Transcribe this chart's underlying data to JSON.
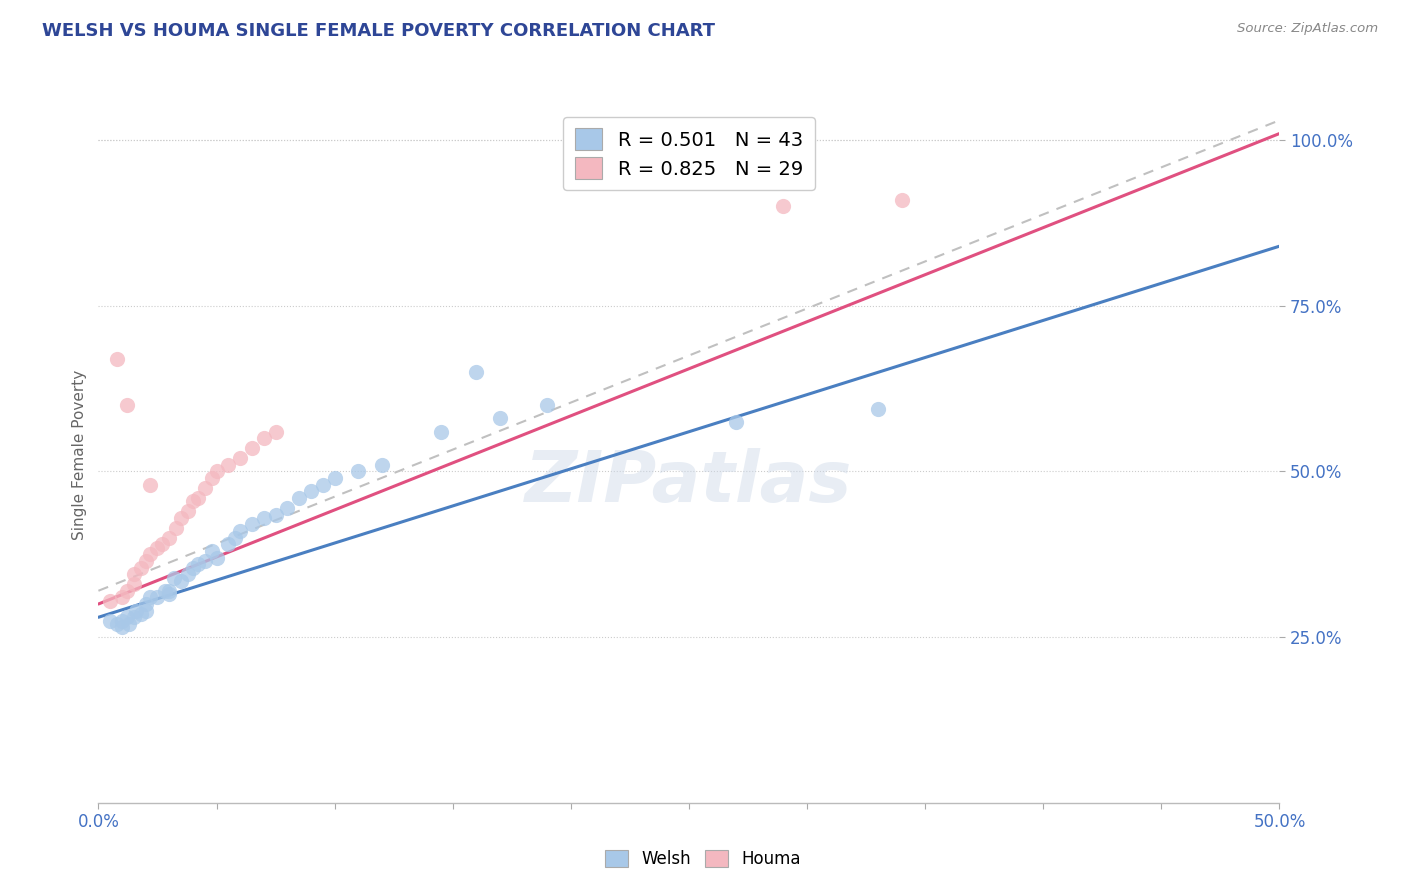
{
  "title": "WELSH VS HOUMA SINGLE FEMALE POVERTY CORRELATION CHART",
  "source": "Source: ZipAtlas.com",
  "ylabel": "Single Female Poverty",
  "welsh_R": 0.501,
  "welsh_N": 43,
  "houma_R": 0.825,
  "houma_N": 29,
  "welsh_color": "#a8c8e8",
  "houma_color": "#f4b8c0",
  "welsh_line_color": "#4a7fc1",
  "houma_line_color": "#e05080",
  "dash_line_color": "#c0c0c0",
  "xlim": [
    0.0,
    0.5
  ],
  "ylim": [
    0.0,
    1.05
  ],
  "ytick_positions": [
    0.25,
    0.5,
    0.75,
    1.0
  ],
  "welsh_points": [
    [
      0.005,
      0.275
    ],
    [
      0.008,
      0.27
    ],
    [
      0.01,
      0.265
    ],
    [
      0.01,
      0.275
    ],
    [
      0.012,
      0.28
    ],
    [
      0.013,
      0.27
    ],
    [
      0.015,
      0.28
    ],
    [
      0.016,
      0.29
    ],
    [
      0.018,
      0.285
    ],
    [
      0.02,
      0.3
    ],
    [
      0.02,
      0.29
    ],
    [
      0.022,
      0.31
    ],
    [
      0.025,
      0.31
    ],
    [
      0.028,
      0.32
    ],
    [
      0.03,
      0.315
    ],
    [
      0.03,
      0.32
    ],
    [
      0.032,
      0.34
    ],
    [
      0.035,
      0.335
    ],
    [
      0.038,
      0.345
    ],
    [
      0.04,
      0.355
    ],
    [
      0.042,
      0.36
    ],
    [
      0.045,
      0.365
    ],
    [
      0.048,
      0.38
    ],
    [
      0.05,
      0.37
    ],
    [
      0.055,
      0.39
    ],
    [
      0.058,
      0.4
    ],
    [
      0.06,
      0.41
    ],
    [
      0.065,
      0.42
    ],
    [
      0.07,
      0.43
    ],
    [
      0.075,
      0.435
    ],
    [
      0.08,
      0.445
    ],
    [
      0.085,
      0.46
    ],
    [
      0.09,
      0.47
    ],
    [
      0.095,
      0.48
    ],
    [
      0.1,
      0.49
    ],
    [
      0.11,
      0.5
    ],
    [
      0.12,
      0.51
    ],
    [
      0.145,
      0.56
    ],
    [
      0.16,
      0.65
    ],
    [
      0.17,
      0.58
    ],
    [
      0.19,
      0.6
    ],
    [
      0.27,
      0.575
    ],
    [
      0.33,
      0.595
    ]
  ],
  "houma_points": [
    [
      0.005,
      0.305
    ],
    [
      0.01,
      0.31
    ],
    [
      0.012,
      0.32
    ],
    [
      0.015,
      0.33
    ],
    [
      0.015,
      0.345
    ],
    [
      0.018,
      0.355
    ],
    [
      0.02,
      0.365
    ],
    [
      0.022,
      0.375
    ],
    [
      0.025,
      0.385
    ],
    [
      0.027,
      0.39
    ],
    [
      0.03,
      0.4
    ],
    [
      0.033,
      0.415
    ],
    [
      0.035,
      0.43
    ],
    [
      0.038,
      0.44
    ],
    [
      0.04,
      0.455
    ],
    [
      0.042,
      0.46
    ],
    [
      0.045,
      0.475
    ],
    [
      0.048,
      0.49
    ],
    [
      0.05,
      0.5
    ],
    [
      0.055,
      0.51
    ],
    [
      0.06,
      0.52
    ],
    [
      0.065,
      0.535
    ],
    [
      0.07,
      0.55
    ],
    [
      0.075,
      0.56
    ],
    [
      0.008,
      0.67
    ],
    [
      0.012,
      0.6
    ],
    [
      0.022,
      0.48
    ],
    [
      0.29,
      0.9
    ],
    [
      0.34,
      0.91
    ]
  ],
  "welsh_trend": [
    0.0,
    0.5,
    0.28,
    0.84
  ],
  "houma_trend": [
    0.0,
    0.5,
    0.3,
    1.01
  ],
  "dash_trend": [
    0.0,
    0.5,
    0.32,
    1.03
  ]
}
